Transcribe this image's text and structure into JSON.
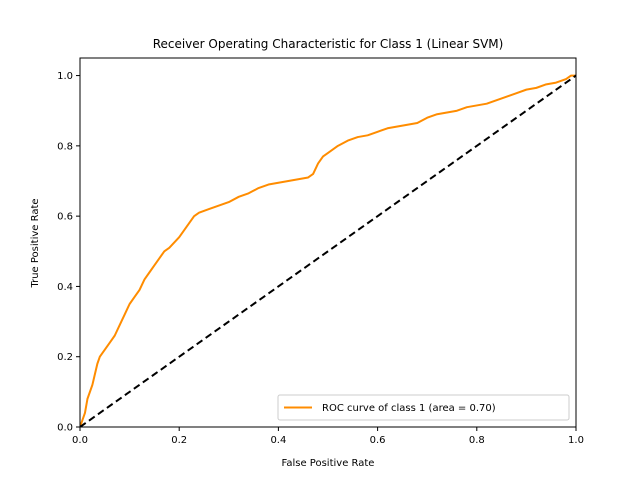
{
  "chart_data": {
    "type": "line",
    "title": "Receiver Operating Characteristic for Class 1 (Linear SVM)",
    "xlabel": "False Positive Rate",
    "ylabel": "True Positive Rate",
    "xlim": [
      0.0,
      1.0
    ],
    "ylim": [
      0.0,
      1.05
    ],
    "xticks": [
      0.0,
      0.2,
      0.4,
      0.6,
      0.8,
      1.0
    ],
    "xtick_labels": [
      "0.0",
      "0.2",
      "0.4",
      "0.6",
      "0.8",
      "1.0"
    ],
    "yticks": [
      0.0,
      0.2,
      0.4,
      0.6,
      0.8,
      1.0
    ],
    "ytick_labels": [
      "0.0",
      "0.2",
      "0.4",
      "0.6",
      "0.8",
      "1.0"
    ],
    "grid": false,
    "legend_position": "lower-right",
    "series": [
      {
        "name": "ROC curve of class 1 (area = 0.70)",
        "color": "#ff8c00",
        "style": "solid",
        "x": [
          0.0,
          0.005,
          0.01,
          0.015,
          0.02,
          0.025,
          0.03,
          0.035,
          0.04,
          0.045,
          0.05,
          0.06,
          0.07,
          0.08,
          0.09,
          0.1,
          0.11,
          0.12,
          0.13,
          0.14,
          0.15,
          0.16,
          0.17,
          0.18,
          0.2,
          0.21,
          0.22,
          0.23,
          0.24,
          0.26,
          0.28,
          0.3,
          0.32,
          0.34,
          0.36,
          0.38,
          0.4,
          0.42,
          0.44,
          0.46,
          0.47,
          0.48,
          0.49,
          0.5,
          0.52,
          0.54,
          0.56,
          0.58,
          0.6,
          0.62,
          0.64,
          0.66,
          0.68,
          0.7,
          0.72,
          0.74,
          0.76,
          0.78,
          0.8,
          0.82,
          0.84,
          0.86,
          0.88,
          0.9,
          0.92,
          0.94,
          0.96,
          0.98,
          0.99,
          1.0
        ],
        "y": [
          0.0,
          0.02,
          0.04,
          0.08,
          0.1,
          0.12,
          0.15,
          0.18,
          0.2,
          0.21,
          0.22,
          0.24,
          0.26,
          0.29,
          0.32,
          0.35,
          0.37,
          0.39,
          0.42,
          0.44,
          0.46,
          0.48,
          0.5,
          0.51,
          0.54,
          0.56,
          0.58,
          0.6,
          0.61,
          0.62,
          0.63,
          0.64,
          0.655,
          0.665,
          0.68,
          0.69,
          0.695,
          0.7,
          0.705,
          0.71,
          0.72,
          0.75,
          0.77,
          0.78,
          0.8,
          0.815,
          0.825,
          0.83,
          0.84,
          0.85,
          0.855,
          0.86,
          0.865,
          0.88,
          0.89,
          0.895,
          0.9,
          0.91,
          0.915,
          0.92,
          0.93,
          0.94,
          0.95,
          0.96,
          0.965,
          0.975,
          0.98,
          0.99,
          1.0,
          1.0
        ]
      },
      {
        "name": "",
        "color": "#000000",
        "style": "dashed",
        "x": [
          0.0,
          1.0
        ],
        "y": [
          0.0,
          1.0
        ]
      }
    ]
  }
}
